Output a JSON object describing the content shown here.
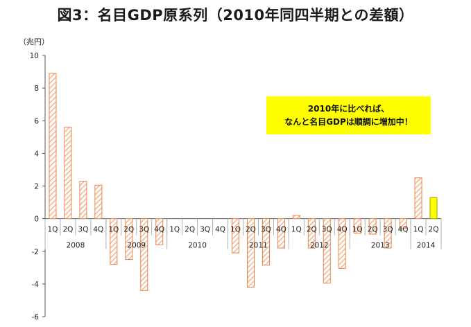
{
  "page": {
    "title": "図3：名目GDP原系列（2010年同四半期との差額）",
    "unit_label": "（兆円）",
    "annotation_line1": "2010年に比べれば、",
    "annotation_line2": "なんと名目GDPは順調に増加中！"
  },
  "colors": {
    "bar_stroke": "#e9854a",
    "bar_hatch": "#f5b48e",
    "highlight_fill": "#ffff00",
    "highlight_stroke": "#a0a000",
    "annotation_bg": "#ffff00",
    "axis": "#555555",
    "grid": "#b0b0b0"
  },
  "chart_data": {
    "type": "bar",
    "title": "図3：名目GDP原系列（2010年同四半期との差額）",
    "ylabel": "（兆円）",
    "xlabel": "",
    "ylim": [
      -6,
      10
    ],
    "yticks": [
      -6,
      -4,
      -2,
      0,
      2,
      4,
      6,
      8,
      10
    ],
    "grid": false,
    "categories": [
      "1Q",
      "2Q",
      "3Q",
      "4Q",
      "1Q",
      "2Q",
      "3Q",
      "4Q",
      "1Q",
      "2Q",
      "3Q",
      "4Q",
      "1Q",
      "2Q",
      "3Q",
      "4Q",
      "1Q",
      "2Q",
      "3Q",
      "4Q",
      "1Q",
      "2Q",
      "3Q",
      "4Q",
      "1Q",
      "2Q"
    ],
    "years": [
      {
        "label": "2008",
        "count": 4
      },
      {
        "label": "2009",
        "count": 4
      },
      {
        "label": "2010",
        "count": 4
      },
      {
        "label": "2011",
        "count": 4
      },
      {
        "label": "2012",
        "count": 4
      },
      {
        "label": "2013",
        "count": 4
      },
      {
        "label": "2014",
        "count": 2
      }
    ],
    "values": [
      8.9,
      5.6,
      2.3,
      2.05,
      -2.8,
      -2.5,
      -4.4,
      -1.6,
      0,
      0,
      0,
      0,
      -2.1,
      -4.2,
      -2.85,
      -1.8,
      0.2,
      -1.8,
      -3.95,
      -3.05,
      -0.9,
      -0.95,
      -1.8,
      -0.6,
      2.5,
      1.3
    ],
    "highlight_index": 25
  }
}
